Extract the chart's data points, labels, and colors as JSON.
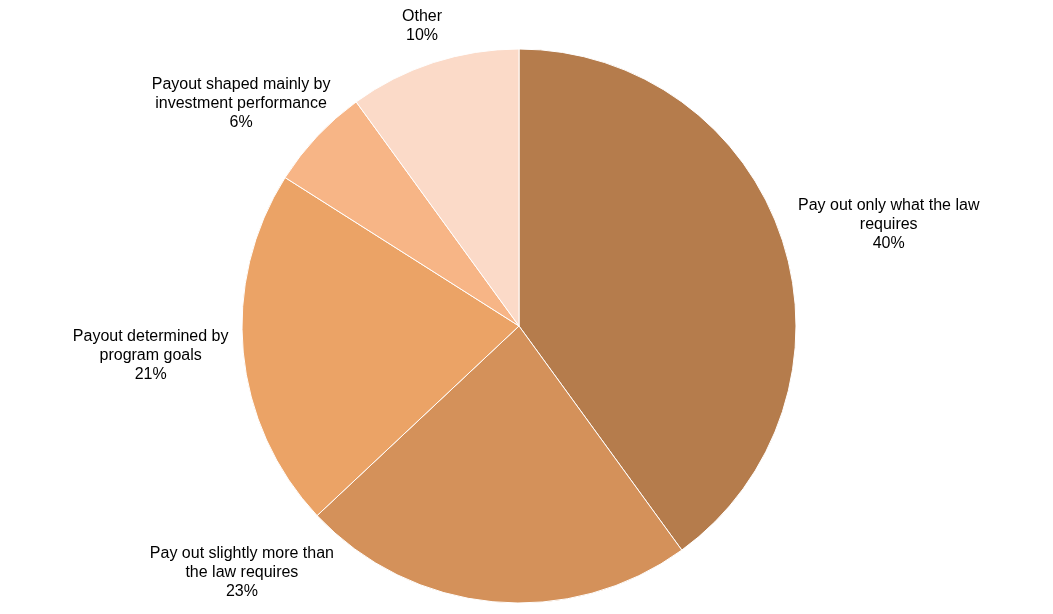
{
  "chart_data": {
    "type": "pie",
    "categories": [
      "Pay out only what the law requires",
      "Pay out slightly more than the law requires",
      "Payout determined by program goals",
      "Payout shaped mainly by investment performance",
      "Other"
    ],
    "values": [
      40,
      23,
      21,
      6,
      10
    ],
    "colors": [
      "#b57c4c",
      "#d4915a",
      "#eba366",
      "#f7b586",
      "#fbdac8"
    ],
    "value_labels": [
      "40%",
      "23%",
      "21%",
      "6%",
      "10%"
    ]
  }
}
